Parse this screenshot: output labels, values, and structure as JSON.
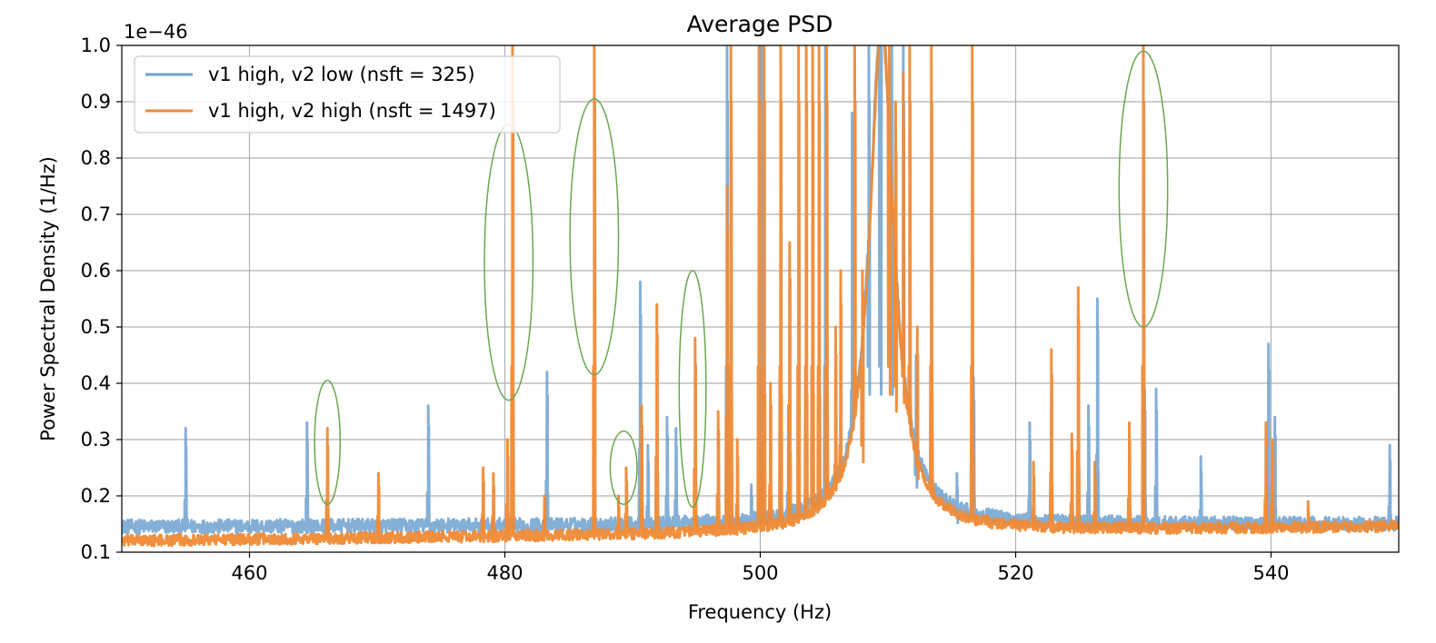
{
  "chart_data": {
    "type": "line",
    "title": "Average PSD",
    "xlabel": "Frequency (Hz)",
    "ylabel": "Power Spectral Density (1/Hz)",
    "y_multiplier_label": "1e−46",
    "xlim": [
      450,
      550
    ],
    "ylim": [
      0.1,
      1.0
    ],
    "xticks": [
      460,
      480,
      500,
      520,
      540
    ],
    "yticks": [
      0.1,
      0.2,
      0.3,
      0.4,
      0.5,
      0.6,
      0.7,
      0.8,
      0.9,
      1.0
    ],
    "xtick_labels": [
      "460",
      "480",
      "500",
      "520",
      "540"
    ],
    "ytick_labels": [
      "0.1",
      "0.2",
      "0.3",
      "0.4",
      "0.5",
      "0.6",
      "0.7",
      "0.8",
      "0.9",
      "1.0"
    ],
    "grid": true,
    "legend_position": "upper-left",
    "legend": [
      "v1 high, v2 low (nsft = 325)",
      "v1 high, v2 high (nsft = 1497)"
    ],
    "series": [
      {
        "name": "v1 high, v2 low (nsft = 325)",
        "color": "#6fa1cf",
        "baseline_start": 0.145,
        "baseline_end": 0.15,
        "noise_band": 0.025,
        "peaks": [
          {
            "x": 455,
            "y": 0.32
          },
          {
            "x": 464.5,
            "y": 0.33
          },
          {
            "x": 474,
            "y": 0.36
          },
          {
            "x": 483.3,
            "y": 0.42
          },
          {
            "x": 490.6,
            "y": 0.58
          },
          {
            "x": 491.2,
            "y": 0.29
          },
          {
            "x": 492.7,
            "y": 0.34
          },
          {
            "x": 493.4,
            "y": 0.32
          },
          {
            "x": 497.4,
            "y": 1.0
          },
          {
            "x": 499.3,
            "y": 0.22
          },
          {
            "x": 500.1,
            "y": 1.0
          },
          {
            "x": 502.2,
            "y": 0.36
          },
          {
            "x": 505.1,
            "y": 1.0
          },
          {
            "x": 507.2,
            "y": 0.88
          },
          {
            "x": 508.5,
            "y": 1.0
          },
          {
            "x": 509.4,
            "y": 1.0
          },
          {
            "x": 510.3,
            "y": 1.0
          },
          {
            "x": 511.2,
            "y": 1.0
          },
          {
            "x": 512.2,
            "y": 0.45
          },
          {
            "x": 515.4,
            "y": 0.24
          },
          {
            "x": 516.7,
            "y": 0.41
          },
          {
            "x": 521.1,
            "y": 0.33
          },
          {
            "x": 525.7,
            "y": 0.36
          },
          {
            "x": 526.4,
            "y": 0.55
          },
          {
            "x": 530.1,
            "y": 0.39
          },
          {
            "x": 531.0,
            "y": 0.39
          },
          {
            "x": 534.5,
            "y": 0.27
          },
          {
            "x": 539.8,
            "y": 0.47
          },
          {
            "x": 540.3,
            "y": 0.34
          },
          {
            "x": 549.3,
            "y": 0.29
          }
        ]
      },
      {
        "name": "v1 high, v2 high (nsft = 1497)",
        "color": "#ef8a35",
        "baseline_start": 0.12,
        "baseline_end": 0.145,
        "noise_band": 0.02,
        "peaks": [
          {
            "x": 466.1,
            "y": 0.32
          },
          {
            "x": 470.1,
            "y": 0.24
          },
          {
            "x": 478.3,
            "y": 0.25
          },
          {
            "x": 479.1,
            "y": 0.24
          },
          {
            "x": 480.2,
            "y": 0.3
          },
          {
            "x": 480.6,
            "y": 1.0
          },
          {
            "x": 483.1,
            "y": 0.2
          },
          {
            "x": 487.0,
            "y": 1.0
          },
          {
            "x": 488.9,
            "y": 0.2
          },
          {
            "x": 489.5,
            "y": 0.25
          },
          {
            "x": 490.7,
            "y": 0.36
          },
          {
            "x": 491.9,
            "y": 0.54
          },
          {
            "x": 494.9,
            "y": 0.48
          },
          {
            "x": 496.7,
            "y": 0.35
          },
          {
            "x": 497.4,
            "y": 0.75
          },
          {
            "x": 497.7,
            "y": 1.0
          },
          {
            "x": 498.2,
            "y": 0.3
          },
          {
            "x": 499.9,
            "y": 1.0
          },
          {
            "x": 500.3,
            "y": 1.0
          },
          {
            "x": 500.8,
            "y": 0.4
          },
          {
            "x": 501.6,
            "y": 1.0
          },
          {
            "x": 502.3,
            "y": 0.65
          },
          {
            "x": 503.0,
            "y": 1.0
          },
          {
            "x": 503.6,
            "y": 1.0
          },
          {
            "x": 504.1,
            "y": 1.0
          },
          {
            "x": 504.6,
            "y": 1.0
          },
          {
            "x": 505.2,
            "y": 1.0
          },
          {
            "x": 505.9,
            "y": 0.5
          },
          {
            "x": 506.3,
            "y": 0.6
          },
          {
            "x": 507.4,
            "y": 1.0
          },
          {
            "x": 508.0,
            "y": 0.6
          },
          {
            "x": 510.1,
            "y": 1.0
          },
          {
            "x": 510.6,
            "y": 0.9
          },
          {
            "x": 511.2,
            "y": 0.95
          },
          {
            "x": 511.7,
            "y": 1.0
          },
          {
            "x": 512.3,
            "y": 0.5
          },
          {
            "x": 513.4,
            "y": 1.0
          },
          {
            "x": 516.6,
            "y": 1.0
          },
          {
            "x": 521.4,
            "y": 0.26
          },
          {
            "x": 522.8,
            "y": 0.46
          },
          {
            "x": 524.4,
            "y": 0.31
          },
          {
            "x": 524.9,
            "y": 0.57
          },
          {
            "x": 526.2,
            "y": 0.26
          },
          {
            "x": 528.9,
            "y": 0.33
          },
          {
            "x": 530.0,
            "y": 1.0
          },
          {
            "x": 539.6,
            "y": 0.33
          },
          {
            "x": 540.1,
            "y": 0.3
          },
          {
            "x": 542.9,
            "y": 0.19
          }
        ]
      }
    ],
    "annotations": [
      {
        "type": "ellipse",
        "color": "#6aa84f",
        "cx": 466.1,
        "cy": 0.295,
        "rx": 1.0,
        "ry": 0.11
      },
      {
        "type": "ellipse",
        "color": "#6aa84f",
        "cx": 480.3,
        "cy": 0.615,
        "rx": 1.9,
        "ry": 0.245
      },
      {
        "type": "ellipse",
        "color": "#6aa84f",
        "cx": 487.0,
        "cy": 0.66,
        "rx": 1.9,
        "ry": 0.245
      },
      {
        "type": "ellipse",
        "color": "#6aa84f",
        "cx": 489.3,
        "cy": 0.25,
        "rx": 1.05,
        "ry": 0.065
      },
      {
        "type": "ellipse",
        "color": "#6aa84f",
        "cx": 494.7,
        "cy": 0.39,
        "rx": 1.05,
        "ry": 0.21
      },
      {
        "type": "ellipse",
        "color": "#6aa84f",
        "cx": 530.0,
        "cy": 0.745,
        "rx": 1.9,
        "ry": 0.245
      }
    ]
  }
}
